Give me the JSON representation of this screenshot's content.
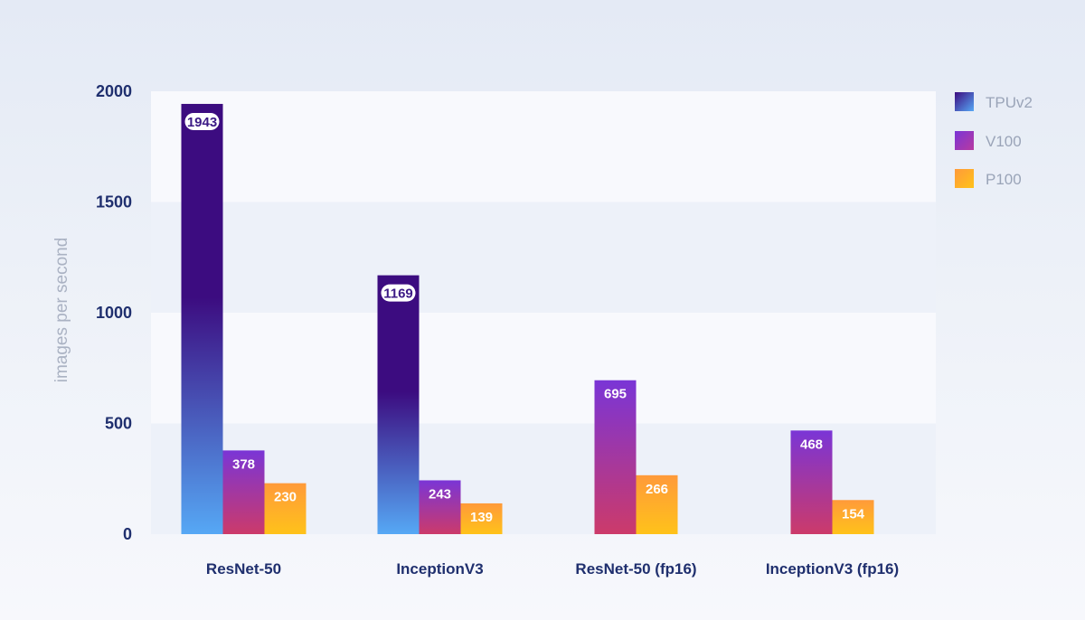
{
  "chart_data": {
    "type": "bar",
    "title": "",
    "xlabel": "",
    "ylabel": "images per second",
    "ylim": [
      0,
      2000
    ],
    "yticks": [
      0,
      500,
      1000,
      1500,
      2000
    ],
    "categories": [
      "ResNet-50",
      "InceptionV3",
      "ResNet-50 (fp16)",
      "InceptionV3 (fp16)"
    ],
    "series": [
      {
        "name": "TPUv2",
        "values": [
          1943,
          1169,
          null,
          null
        ],
        "colors": [
          "#3c0c80",
          "#56a8f5"
        ]
      },
      {
        "name": "V100",
        "values": [
          378,
          243,
          695,
          468
        ],
        "colors": [
          "#7a35d6",
          "#cc3a6a"
        ]
      },
      {
        "name": "P100",
        "values": [
          230,
          139,
          266,
          154
        ],
        "colors": [
          "#ff9a3a",
          "#ffc21a"
        ]
      }
    ],
    "legend": "right"
  }
}
